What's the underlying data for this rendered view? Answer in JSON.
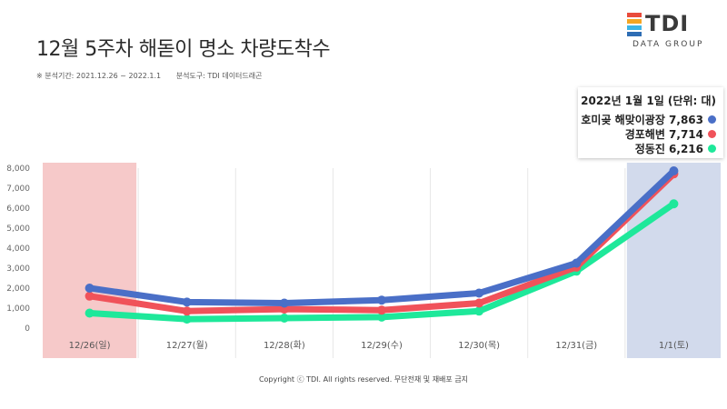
{
  "header": {
    "title": "12월 5주차 해돋이 명소 차량도착수",
    "period": "※ 분석기간: 2021.12.26 ~ 2022.1.1",
    "tool": "분석도구: TDI 데이터드래곤"
  },
  "logo": {
    "text": "TDI",
    "sub": "DATA GROUP",
    "colors": [
      "#e94b3c",
      "#f5a623",
      "#3db5e6",
      "#2e6db4"
    ]
  },
  "legend": {
    "title": "2022년 1월 1일 (단위: 대)",
    "items": [
      {
        "label": "호미곶 해맞이광장 7,863",
        "color": "#4a6fc7"
      },
      {
        "label": "경포해변 7,714",
        "color": "#f0525a"
      },
      {
        "label": "정동진 6,216",
        "color": "#1ee89a"
      }
    ]
  },
  "footer": {
    "text": "Copyright ⓒ TDI. All rights reserved. 무단전재 및 재배포 금지"
  },
  "chart_data": {
    "type": "line",
    "categories": [
      "12/26(일)",
      "12/27(월)",
      "12/28(화)",
      "12/29(수)",
      "12/30(목)",
      "12/31(금)",
      "1/1(토)"
    ],
    "y_ticks": [
      "0",
      "1,000",
      "2,000",
      "3,000",
      "4,000",
      "5,000",
      "6,000",
      "7,000",
      "8,000"
    ],
    "ylim": [
      0,
      8000
    ],
    "highlight_colors": {
      "first": "#f6c9c9",
      "last": "#d2daec"
    },
    "series": [
      {
        "name": "호미곶 해맞이광장",
        "color": "#4a6fc7",
        "values": [
          2000,
          1300,
          1250,
          1400,
          1750,
          3250,
          7863
        ]
      },
      {
        "name": "경포해변",
        "color": "#f0525a",
        "values": [
          1600,
          850,
          950,
          900,
          1250,
          3050,
          7714
        ]
      },
      {
        "name": "정동진",
        "color": "#1ee89a",
        "values": [
          750,
          450,
          500,
          550,
          850,
          2850,
          6216
        ]
      }
    ]
  }
}
